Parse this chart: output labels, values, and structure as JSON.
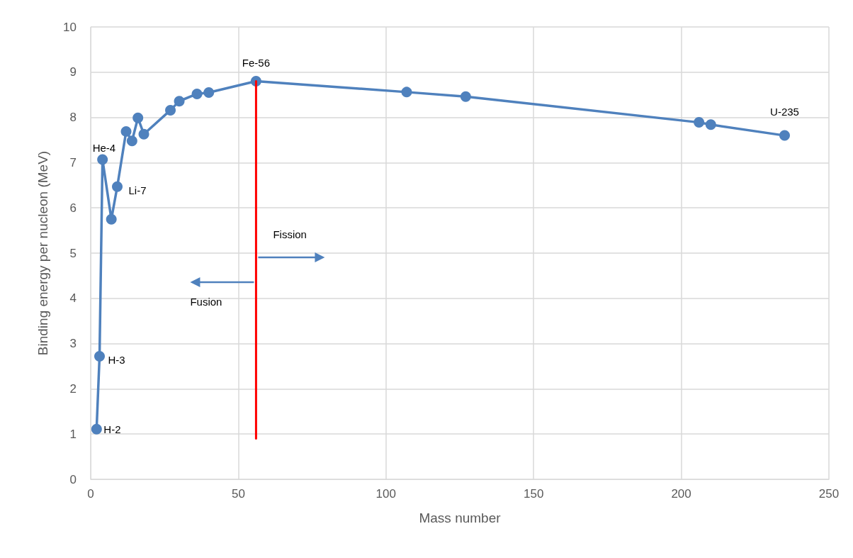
{
  "chart_data": {
    "type": "line",
    "xlabel": "Mass number",
    "ylabel": "Binding energy per nucleon (MeV)",
    "series": [
      {
        "color": "#4f81bd",
        "x": [
          2,
          3,
          4,
          7,
          9,
          12,
          14,
          16,
          18,
          27,
          30,
          36,
          40,
          56,
          107,
          127,
          206,
          210,
          235
        ],
        "values": [
          1.11,
          2.72,
          7.07,
          5.75,
          6.47,
          7.69,
          7.48,
          7.99,
          7.63,
          8.16,
          8.36,
          8.52,
          8.55,
          8.8,
          8.56,
          8.46,
          7.89,
          7.84,
          7.6
        ],
        "marker": "circle"
      },
      {
        "color": "#ff0000",
        "x": [
          56,
          56
        ],
        "values": [
          0.9,
          8.8
        ],
        "marker": "none"
      }
    ],
    "xlim": [
      0,
      250
    ],
    "xticks": [
      0,
      50,
      100,
      150,
      200,
      250
    ],
    "ylim": [
      0,
      10
    ],
    "yticks": [
      0,
      1,
      2,
      3,
      4,
      5,
      6,
      7,
      8,
      9,
      10
    ],
    "grid": true,
    "annotations": [
      {
        "text": "H-2",
        "x": 2,
        "y": 1.11
      },
      {
        "text": "H-3",
        "x": 3,
        "y": 2.72
      },
      {
        "text": "He-4",
        "x": 4,
        "y": 7.07
      },
      {
        "text": "Li-7",
        "x": 9,
        "y": 6.47
      },
      {
        "text": "Fe-56",
        "x": 56,
        "y": 8.8
      },
      {
        "text": "U-235",
        "x": 235,
        "y": 7.6
      },
      "Fission",
      "Fusion"
    ]
  }
}
